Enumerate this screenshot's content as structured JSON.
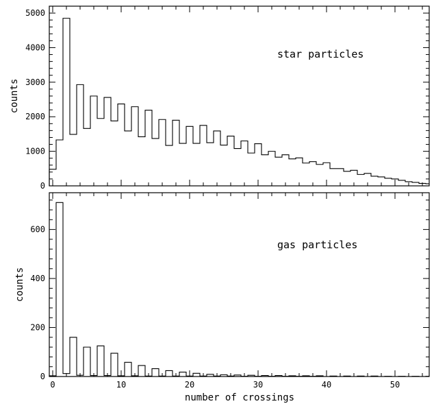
{
  "chart_data": [
    {
      "type": "histogram",
      "annotation": "star particles",
      "ylabel": "counts",
      "xlabel": "",
      "xlim": [
        -0.5,
        55
      ],
      "ylim": [
        0,
        5200
      ],
      "x_ticks": [
        0,
        10,
        20,
        30,
        40,
        50
      ],
      "y_ticks": [
        0,
        1000,
        2000,
        3000,
        4000,
        5000
      ],
      "x_tick_labels": [
        "",
        "",
        "",
        "",
        "",
        ""
      ],
      "y_tick_labels": [
        "0",
        "1000",
        "2000",
        "3000",
        "4000",
        "5000"
      ],
      "bin_width": 1,
      "bin_starts": [
        -0.5,
        0.5,
        1.5,
        2.5,
        3.5,
        4.5,
        5.5,
        6.5,
        7.5,
        8.5,
        9.5,
        10.5,
        11.5,
        12.5,
        13.5,
        14.5,
        15.5,
        16.5,
        17.5,
        18.5,
        19.5,
        20.5,
        21.5,
        22.5,
        23.5,
        24.5,
        25.5,
        26.5,
        27.5,
        28.5,
        29.5,
        30.5,
        31.5,
        32.5,
        33.5,
        34.5,
        35.5,
        36.5,
        37.5,
        38.5,
        39.5,
        40.5,
        41.5,
        42.5,
        43.5,
        44.5,
        45.5,
        46.5,
        47.5,
        48.5,
        49.5,
        50.5,
        51.5,
        52.5,
        53.5,
        54.5
      ],
      "counts": [
        480,
        1330,
        4850,
        1490,
        2930,
        1660,
        2600,
        1950,
        2560,
        1880,
        2370,
        1590,
        2290,
        1420,
        2190,
        1370,
        1920,
        1170,
        1900,
        1230,
        1720,
        1230,
        1750,
        1250,
        1590,
        1180,
        1440,
        1080,
        1300,
        950,
        1220,
        900,
        1000,
        830,
        900,
        780,
        810,
        660,
        700,
        620,
        670,
        500,
        500,
        420,
        450,
        330,
        360,
        280,
        260,
        220,
        200,
        160,
        120,
        100,
        70,
        60
      ]
    },
    {
      "type": "histogram",
      "annotation": "gas particles",
      "ylabel": "counts",
      "xlabel": "number of crossings",
      "xlim": [
        -0.5,
        55
      ],
      "ylim": [
        0,
        750
      ],
      "x_ticks": [
        0,
        10,
        20,
        30,
        40,
        50
      ],
      "y_ticks": [
        0,
        200,
        400,
        600
      ],
      "x_tick_labels": [
        "0",
        "10",
        "20",
        "30",
        "40",
        "50"
      ],
      "y_tick_labels": [
        "0",
        "200",
        "400",
        "600"
      ],
      "bin_width": 1,
      "bin_starts": [
        -0.5,
        0.5,
        1.5,
        2.5,
        3.5,
        4.5,
        5.5,
        6.5,
        7.5,
        8.5,
        9.5,
        10.5,
        11.5,
        12.5,
        13.5,
        14.5,
        15.5,
        16.5,
        17.5,
        18.5,
        19.5,
        20.5,
        21.5,
        22.5,
        23.5,
        24.5,
        25.5,
        26.5,
        27.5,
        28.5,
        29.5,
        30.5,
        31.5,
        32.5,
        33.5,
        34.5,
        35.5,
        36.5,
        37.5,
        38.5,
        39.5,
        40.5,
        41.5,
        42.5,
        43.5,
        44.5,
        45.5,
        46.5,
        47.5,
        48.5,
        49.5,
        50.5,
        51.5,
        52.5,
        53.5,
        54.5
      ],
      "counts": [
        3,
        710,
        12,
        160,
        5,
        120,
        4,
        125,
        4,
        95,
        3,
        58,
        3,
        45,
        2,
        32,
        2,
        24,
        2,
        18,
        2,
        13,
        2,
        9,
        2,
        7,
        2,
        6,
        1,
        5,
        1,
        4,
        1,
        4,
        1,
        3,
        1,
        3,
        1,
        3,
        0,
        2,
        0,
        2,
        0,
        2,
        0,
        2,
        0,
        1,
        0,
        1,
        0,
        1,
        0,
        1
      ]
    }
  ]
}
